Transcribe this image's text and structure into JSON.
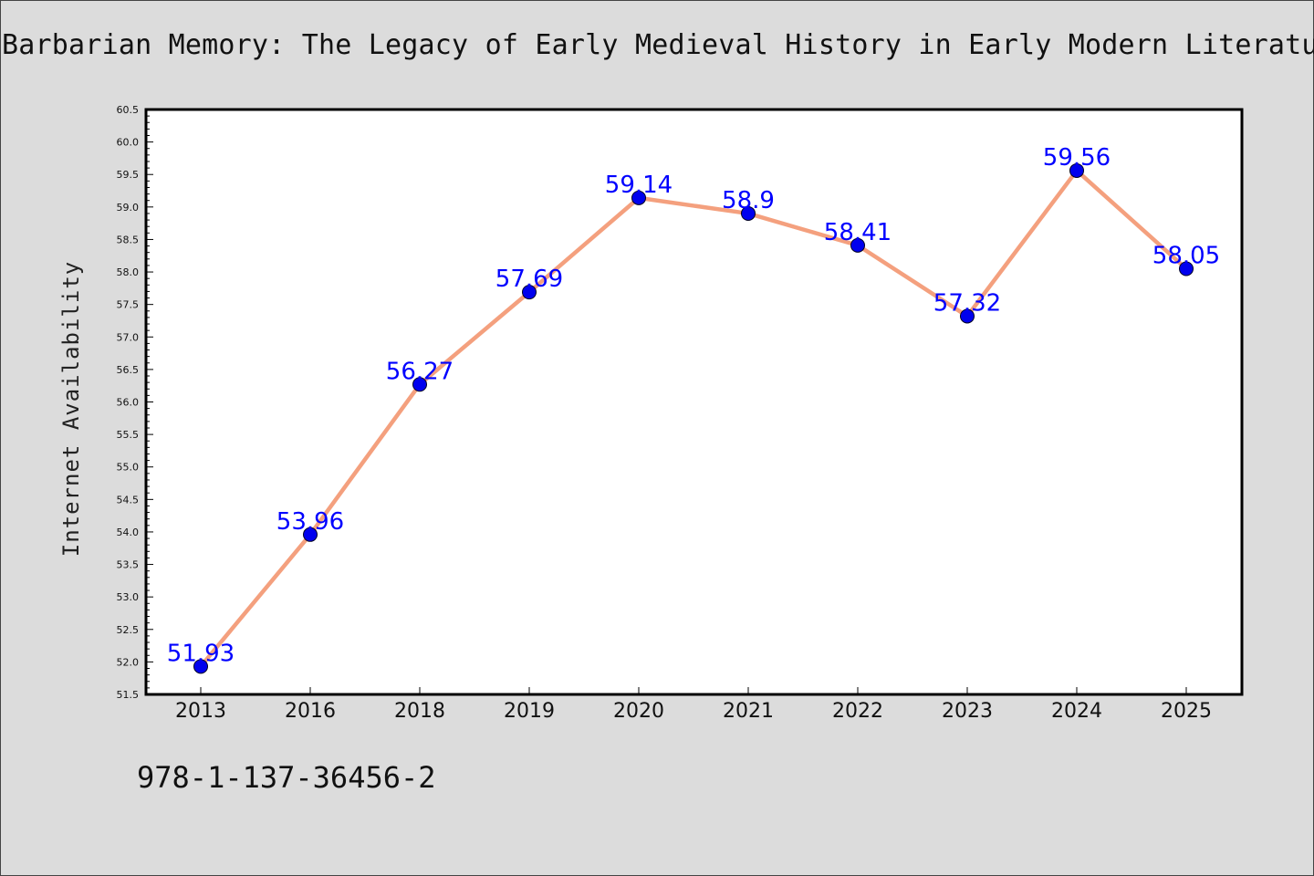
{
  "chart_data": {
    "type": "line",
    "title": "Barbarian Memory: The Legacy of Early Medieval History in Early Modern Literature",
    "xlabel": "",
    "ylabel": "Internet Availability",
    "categories": [
      "2013",
      "2016",
      "2018",
      "2019",
      "2020",
      "2021",
      "2022",
      "2023",
      "2024",
      "2025"
    ],
    "series": [
      {
        "values": [
          51.93,
          53.96,
          56.27,
          57.69,
          59.14,
          58.9,
          58.41,
          57.32,
          59.56,
          58.05
        ],
        "data_labels": [
          "51.93",
          "53.96",
          "56.27",
          "57.69",
          "59.14",
          "58.9",
          "58.41",
          "57.32",
          "59.56",
          "58.05"
        ]
      }
    ],
    "ylim": [
      51.5,
      60.5
    ],
    "yticks": [
      "51.5",
      "52.0",
      "52.5",
      "53.0",
      "53.5",
      "54.0",
      "54.5",
      "55.0",
      "55.5",
      "56.0",
      "56.5",
      "57.0",
      "57.5",
      "58.0",
      "58.5",
      "59.0",
      "59.5",
      "60.0",
      "60.5"
    ],
    "grid": false,
    "legend": "none",
    "colors": {
      "line": "#f4a07e",
      "marker": "#0000ee",
      "data_label": "#0000ff",
      "plot_background": "#ffffff",
      "figure_background": "#dcdcdc"
    }
  },
  "footer": {
    "isbn": "978-1-137-36456-2"
  }
}
